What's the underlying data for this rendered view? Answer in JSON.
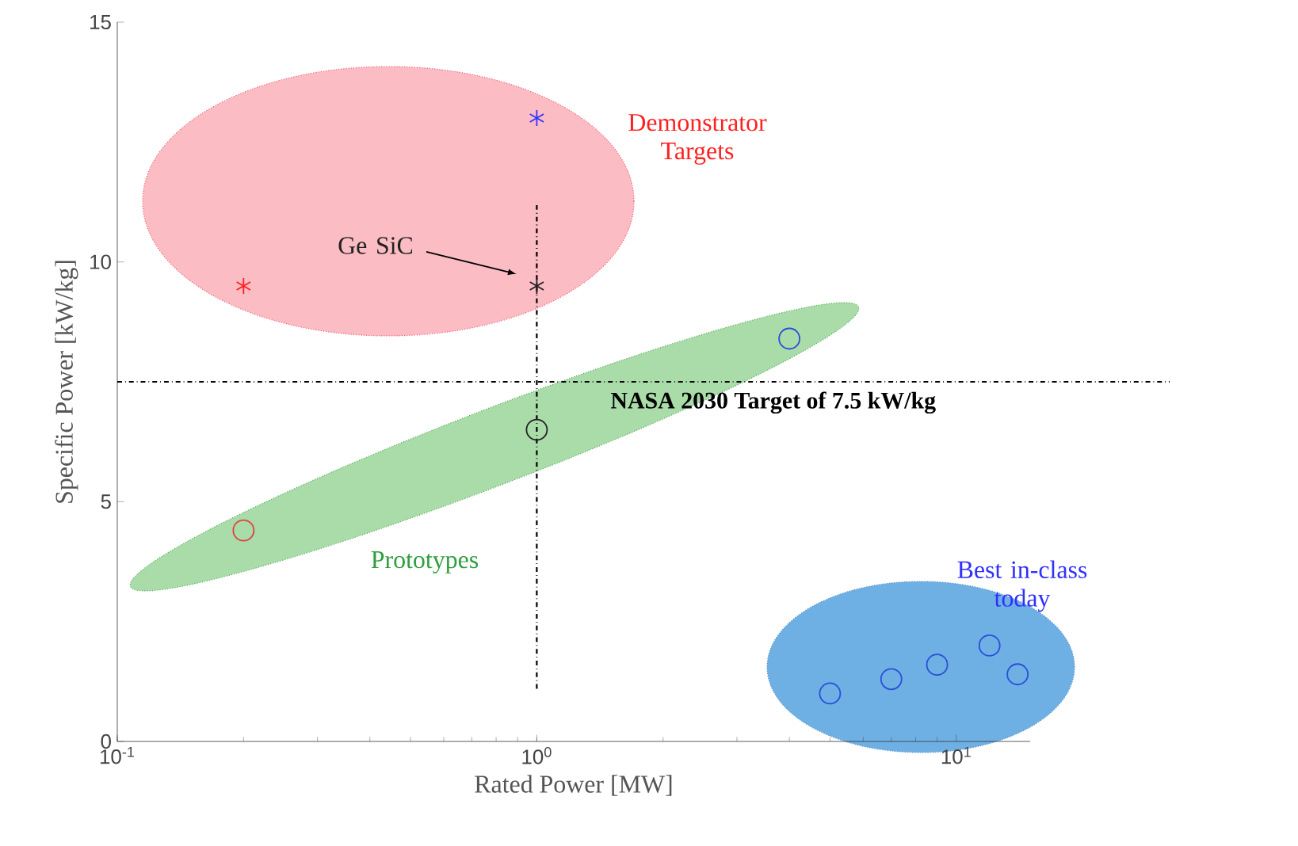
{
  "chart_data": {
    "type": "scatter",
    "xlabel": "Rated Power [MW]",
    "ylabel": "Specific Power [kW/kg]",
    "log": "x",
    "xlim": [
      0.1,
      15
    ],
    "ylim": [
      0,
      15
    ],
    "xticks": [
      {
        "value": 0.1,
        "label": "10$^{-1}$"
      },
      {
        "value": 1,
        "label": "10$^{0}$"
      },
      {
        "value": 10,
        "label": "10$^{1}$"
      }
    ],
    "yticks": [
      0,
      5,
      10,
      15
    ],
    "grid": false,
    "series": [
      {
        "marker": "cross",
        "color": "#ff2020",
        "x": [
          0.2
        ],
        "values": [
          9.5
        ]
      },
      {
        "marker": "cross",
        "color": "#3333ff",
        "x": [
          1
        ],
        "values": [
          13
        ]
      },
      {
        "marker": "cross",
        "color": "#222222",
        "x": [
          1
        ],
        "values": [
          9.5
        ]
      },
      {
        "marker": "circle",
        "color": "#dd4444",
        "x": [
          0.2
        ],
        "values": [
          4.4
        ]
      },
      {
        "marker": "circle",
        "color": "#222222",
        "x": [
          1
        ],
        "values": [
          6.5
        ]
      },
      {
        "marker": "circle",
        "color": "#2a4fd6",
        "x": [
          4,
          5,
          7,
          9,
          12,
          14
        ],
        "values": [
          8.4,
          1.0,
          1.3,
          1.6,
          2.0,
          1.4
        ]
      }
    ],
    "ref_lines": [
      {
        "axis": "y",
        "value": 7.5,
        "label": "NASA 2030 Target of 7.5 kW/kg",
        "line_style": "dashdot"
      },
      {
        "axis": "x",
        "value": 1,
        "line_style": "dashdot"
      }
    ],
    "annotations": [
      "Demonstrator Targets",
      "Ge SiC",
      "Prototypes",
      "Best in-class today"
    ]
  }
}
